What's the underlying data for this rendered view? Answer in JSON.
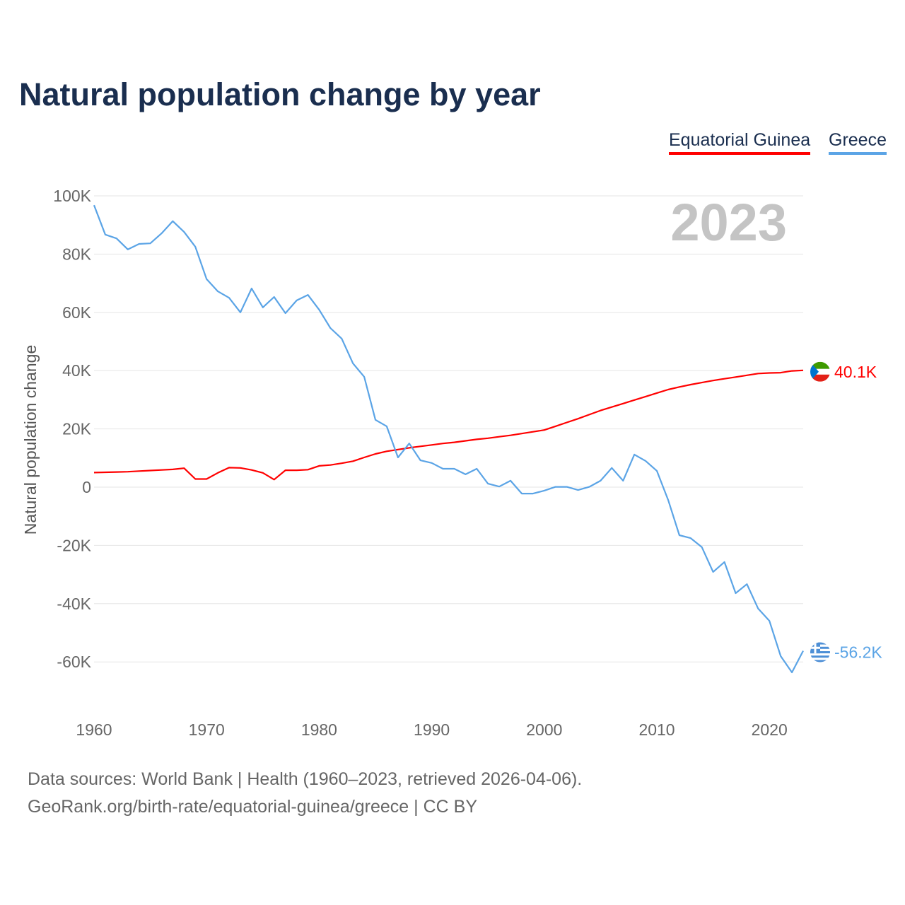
{
  "chart_data": {
    "type": "line",
    "title": "Natural population change by year",
    "xlabel": "",
    "ylabel": "Natural population change",
    "year_label": "2023",
    "xlim": [
      1960,
      2023
    ],
    "ylim": [
      -70000,
      100000
    ],
    "xticks": [
      1960,
      1970,
      1980,
      1990,
      2000,
      2010,
      2020
    ],
    "yticks": [
      {
        "v": 100000,
        "label": "100K"
      },
      {
        "v": 80000,
        "label": "80K"
      },
      {
        "v": 60000,
        "label": "60K"
      },
      {
        "v": 40000,
        "label": "40K"
      },
      {
        "v": 20000,
        "label": "20K"
      },
      {
        "v": 0,
        "label": "0"
      },
      {
        "v": -20000,
        "label": "-20K"
      },
      {
        "v": -40000,
        "label": "-40K"
      },
      {
        "v": -60000,
        "label": "-60K"
      }
    ],
    "grid": true,
    "legend_position": "top-right",
    "x_start": 1960,
    "series": [
      {
        "name": "Equatorial Guinea",
        "color": "#ff0000",
        "end_label": "40.1K",
        "flag": "equatorial-guinea-flag",
        "values": [
          5000,
          5100,
          5200,
          5300,
          5500,
          5700,
          5900,
          6100,
          6500,
          2800,
          2800,
          4900,
          6700,
          6600,
          5900,
          4900,
          2600,
          5800,
          5800,
          6000,
          7300,
          7600,
          8200,
          8900,
          10200,
          11400,
          12300,
          12900,
          13500,
          14000,
          14500,
          15000,
          15400,
          15900,
          16400,
          16800,
          17300,
          17800,
          18400,
          19000,
          19600,
          20900,
          22200,
          23500,
          24900,
          26300,
          27500,
          28700,
          29900,
          31100,
          32300,
          33500,
          34400,
          35200,
          35900,
          36600,
          37200,
          37800,
          38400,
          39000,
          39200,
          39300,
          39900,
          40100
        ]
      },
      {
        "name": "Greece",
        "color": "#5ba4e6",
        "end_label": "-56.2K",
        "flag": "greece-flag",
        "values": [
          96800,
          86700,
          85400,
          81600,
          83500,
          83700,
          87100,
          91300,
          87600,
          82500,
          71400,
          67200,
          65000,
          60000,
          68200,
          61700,
          65300,
          59700,
          64100,
          66000,
          60900,
          54600,
          51000,
          42500,
          37900,
          23100,
          20900,
          10200,
          15000,
          9200,
          8300,
          6300,
          6300,
          4400,
          6300,
          1200,
          200,
          2200,
          -2200,
          -2200,
          -1200,
          100,
          100,
          -1000,
          100,
          2200,
          6600,
          2200,
          11200,
          9000,
          5600,
          -4400,
          -16500,
          -17500,
          -20600,
          -29100,
          -25700,
          -36400,
          -33300,
          -41700,
          -45900,
          -58000,
          -63600,
          -56200
        ]
      }
    ]
  },
  "footer": {
    "line1": "Data sources: World Bank | Health (1960–2023, retrieved 2026-04-06).",
    "line2": "GeoRank.org/birth-rate/equatorial-guinea/greece | CC BY"
  }
}
